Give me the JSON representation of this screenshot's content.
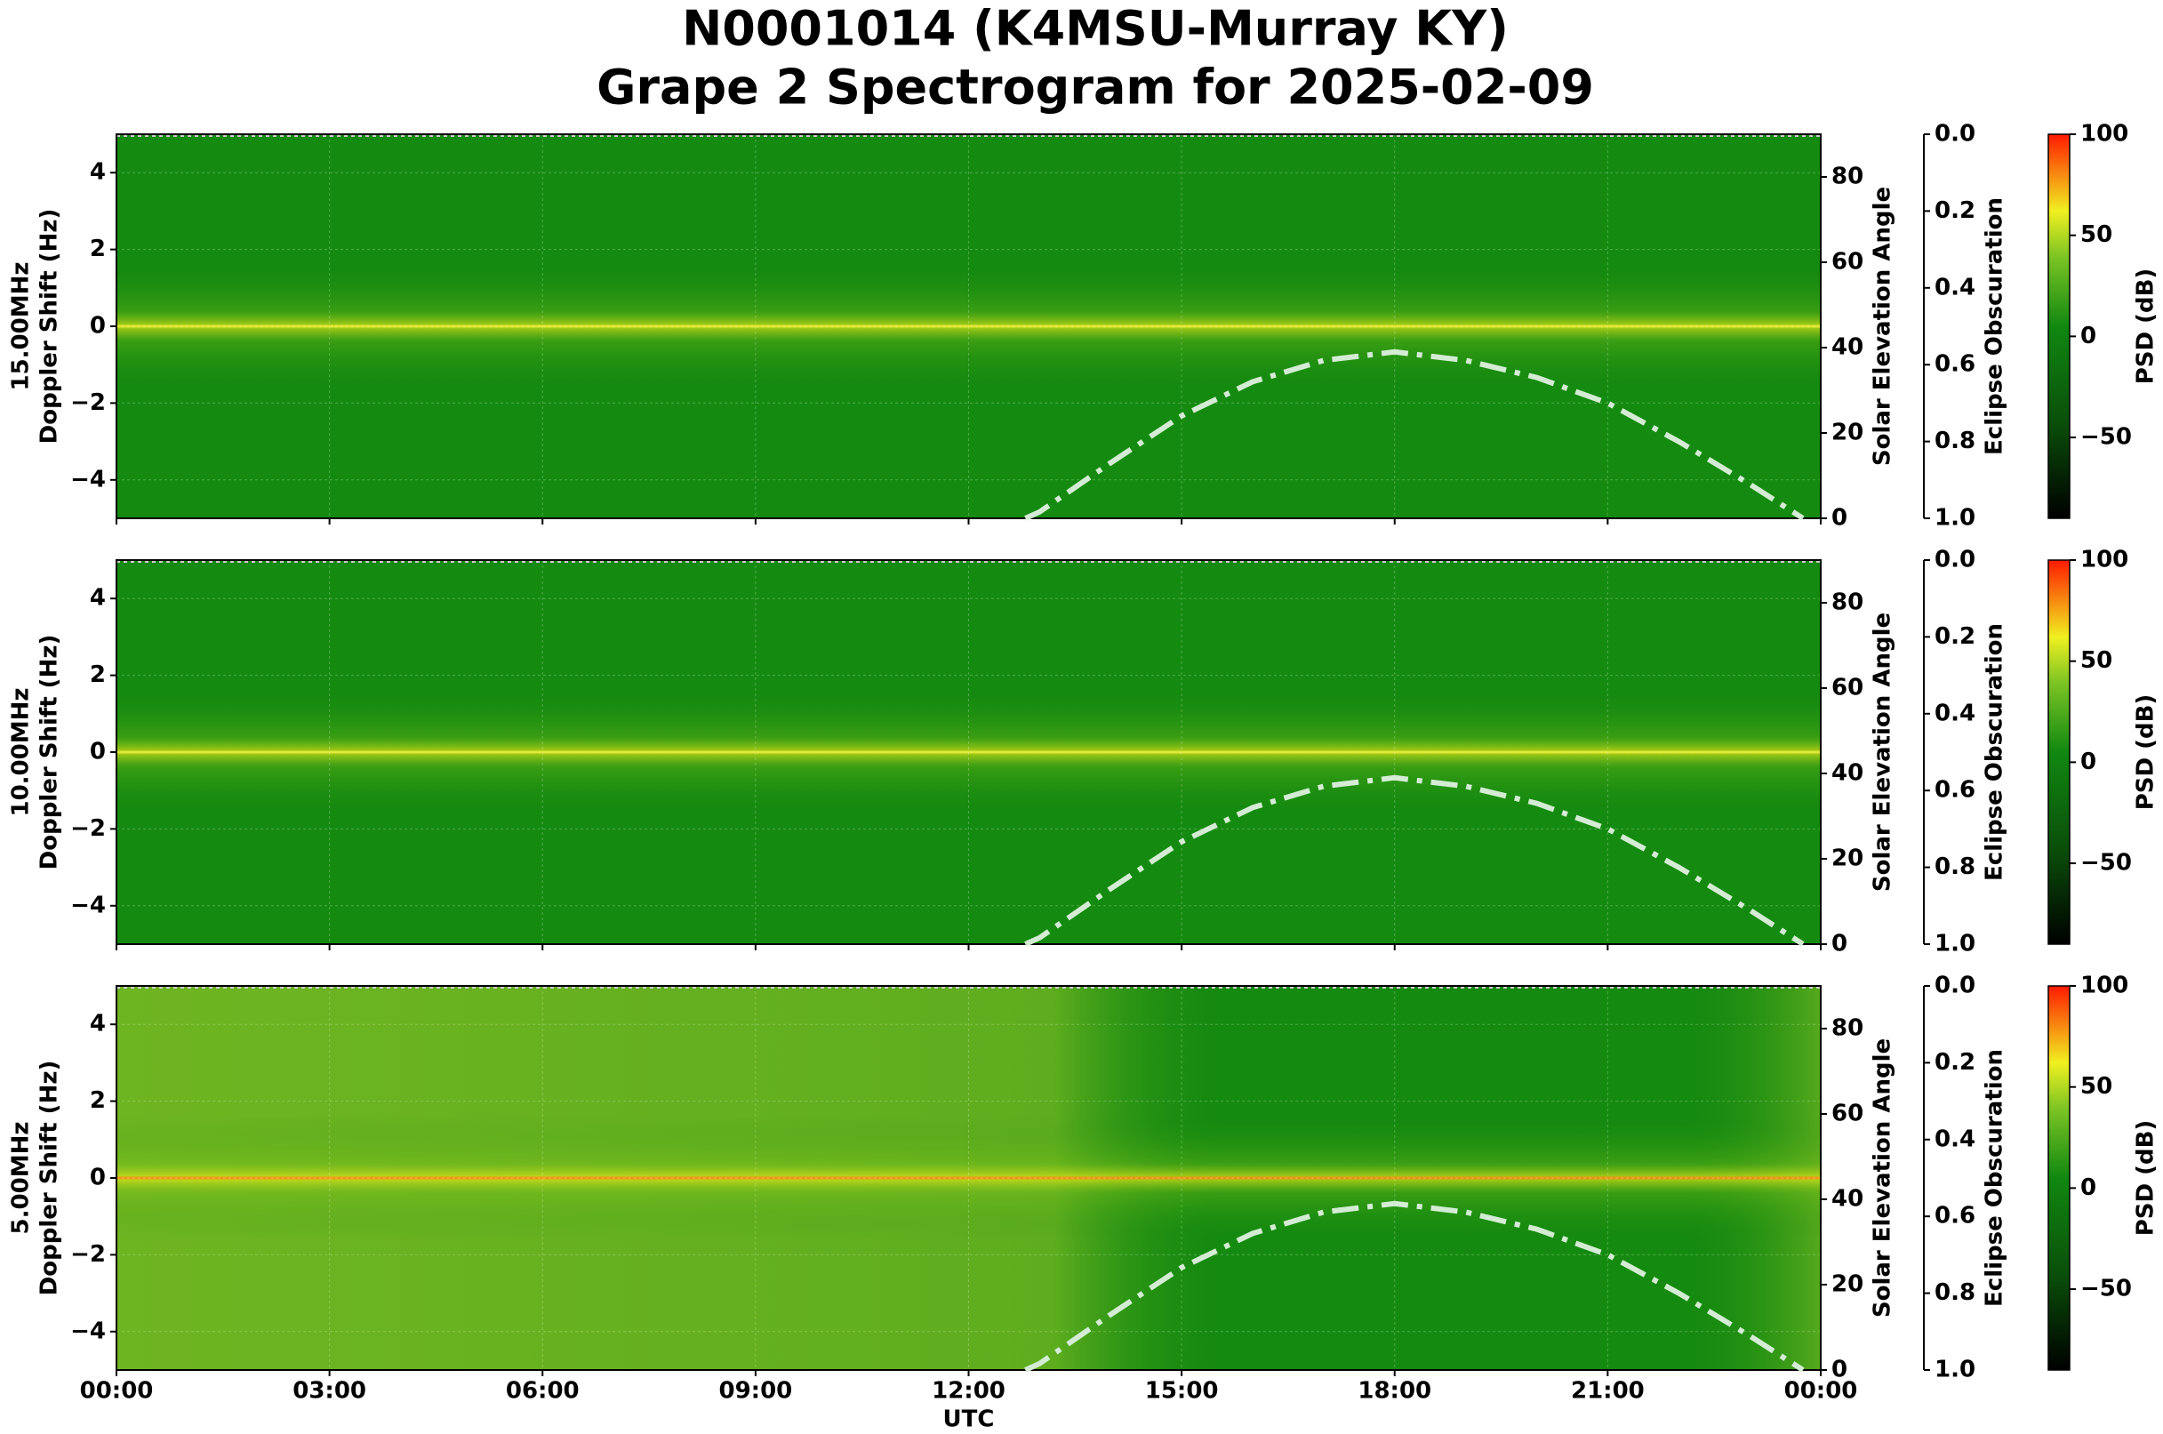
{
  "title": [
    "N0001014 (K4MSU-Murray KY)",
    "Grape 2 Spectrogram for 2025-02-09"
  ],
  "x_axis": {
    "label": "UTC",
    "xlim": [
      0,
      24
    ],
    "xticks": [
      {
        "value": 0,
        "label": "00:00"
      },
      {
        "value": 3,
        "label": "03:00"
      },
      {
        "value": 6,
        "label": "06:00"
      },
      {
        "value": 9,
        "label": "09:00"
      },
      {
        "value": 12,
        "label": "12:00"
      },
      {
        "value": 15,
        "label": "15:00"
      },
      {
        "value": 18,
        "label": "18:00"
      },
      {
        "value": 21,
        "label": "21:00"
      },
      {
        "value": 24,
        "label": "00:00"
      }
    ]
  },
  "chart_data": [
    {
      "type": "spectrogram",
      "ylabel": [
        "15.00MHz",
        "Doppler Shift (Hz)"
      ],
      "ylim": [
        -5,
        5
      ],
      "yticks": [
        {
          "value": -4,
          "label": "−4"
        },
        {
          "value": -2,
          "label": "−2"
        },
        0,
        2,
        4
      ],
      "y2label": "Solar Elevation Angle",
      "y2lim": [
        0,
        90
      ],
      "y2ticks": [
        0,
        20,
        40,
        60,
        80
      ],
      "eclipse": {
        "label": "Eclipse Obscuration",
        "lim": [
          0,
          1
        ],
        "inverted": true,
        "ticks": [
          {
            "value": 0,
            "label": "0.0"
          },
          {
            "value": 0.2,
            "label": "0.2"
          },
          {
            "value": 0.4,
            "label": "0.4"
          },
          {
            "value": 0.6,
            "label": "0.6"
          },
          {
            "value": 0.8,
            "label": "0.8"
          },
          {
            "value": 1,
            "label": "1.0"
          }
        ]
      },
      "colorbar": {
        "label": "PSD (dB)",
        "lim": [
          -90,
          100
        ],
        "ticks": [
          100,
          50,
          0,
          {
            "value": -50,
            "label": "−50"
          }
        ]
      },
      "series": [
        {
          "axis": "y2",
          "color": "#d4ecd4",
          "x": [
            12.8,
            13,
            14,
            15,
            16,
            17,
            18,
            19,
            20,
            21,
            22,
            23,
            23.75
          ],
          "values": [
            0,
            1.5,
            13,
            24,
            32,
            37,
            39,
            37,
            33,
            27,
            18,
            8,
            0
          ]
        }
      ]
    },
    {
      "type": "spectrogram",
      "ylabel": [
        "10.00MHz",
        "Doppler Shift (Hz)"
      ],
      "ylim": [
        -5,
        5
      ],
      "yticks": [
        {
          "value": -4,
          "label": "−4"
        },
        {
          "value": -2,
          "label": "−2"
        },
        0,
        2,
        4
      ],
      "y2label": "Solar Elevation Angle",
      "y2lim": [
        0,
        90
      ],
      "y2ticks": [
        0,
        20,
        40,
        60,
        80
      ],
      "eclipse": {
        "label": "Eclipse Obscuration",
        "lim": [
          0,
          1
        ],
        "inverted": true,
        "ticks": [
          {
            "value": 0,
            "label": "0.0"
          },
          {
            "value": 0.2,
            "label": "0.2"
          },
          {
            "value": 0.4,
            "label": "0.4"
          },
          {
            "value": 0.6,
            "label": "0.6"
          },
          {
            "value": 0.8,
            "label": "0.8"
          },
          {
            "value": 1,
            "label": "1.0"
          }
        ]
      },
      "colorbar": {
        "label": "PSD (dB)",
        "lim": [
          -90,
          100
        ],
        "ticks": [
          100,
          50,
          0,
          {
            "value": -50,
            "label": "−50"
          }
        ]
      },
      "series": [
        {
          "axis": "y2",
          "color": "#d4ecd4",
          "x": [
            12.8,
            13,
            14,
            15,
            16,
            17,
            18,
            19,
            20,
            21,
            22,
            23,
            23.75
          ],
          "values": [
            0,
            1.5,
            13,
            24,
            32,
            37,
            39,
            37,
            33,
            27,
            18,
            8,
            0
          ]
        }
      ]
    },
    {
      "type": "spectrogram",
      "ylabel": [
        "5.00MHz",
        "Doppler Shift (Hz)"
      ],
      "ylim": [
        -5,
        5
      ],
      "yticks": [
        {
          "value": -4,
          "label": "−4"
        },
        {
          "value": -2,
          "label": "−2"
        },
        0,
        2,
        4
      ],
      "y2label": "Solar Elevation Angle",
      "y2lim": [
        0,
        90
      ],
      "y2ticks": [
        0,
        20,
        40,
        60,
        80
      ],
      "eclipse": {
        "label": "Eclipse Obscuration",
        "lim": [
          0,
          1
        ],
        "inverted": true,
        "ticks": [
          {
            "value": 0,
            "label": "0.0"
          },
          {
            "value": 0.2,
            "label": "0.2"
          },
          {
            "value": 0.4,
            "label": "0.4"
          },
          {
            "value": 0.6,
            "label": "0.6"
          },
          {
            "value": 0.8,
            "label": "0.8"
          },
          {
            "value": 1,
            "label": "1.0"
          }
        ]
      },
      "colorbar": {
        "label": "PSD (dB)",
        "lim": [
          -90,
          100
        ],
        "ticks": [
          100,
          50,
          0,
          {
            "value": -50,
            "label": "−50"
          }
        ]
      },
      "series": [
        {
          "axis": "y2",
          "color": "#d4ecd4",
          "x": [
            12.8,
            13,
            14,
            15,
            16,
            17,
            18,
            19,
            20,
            21,
            22,
            23,
            23.75
          ],
          "values": [
            0,
            1.5,
            13,
            24,
            32,
            37,
            39,
            37,
            33,
            27,
            18,
            8,
            0
          ]
        }
      ]
    }
  ]
}
